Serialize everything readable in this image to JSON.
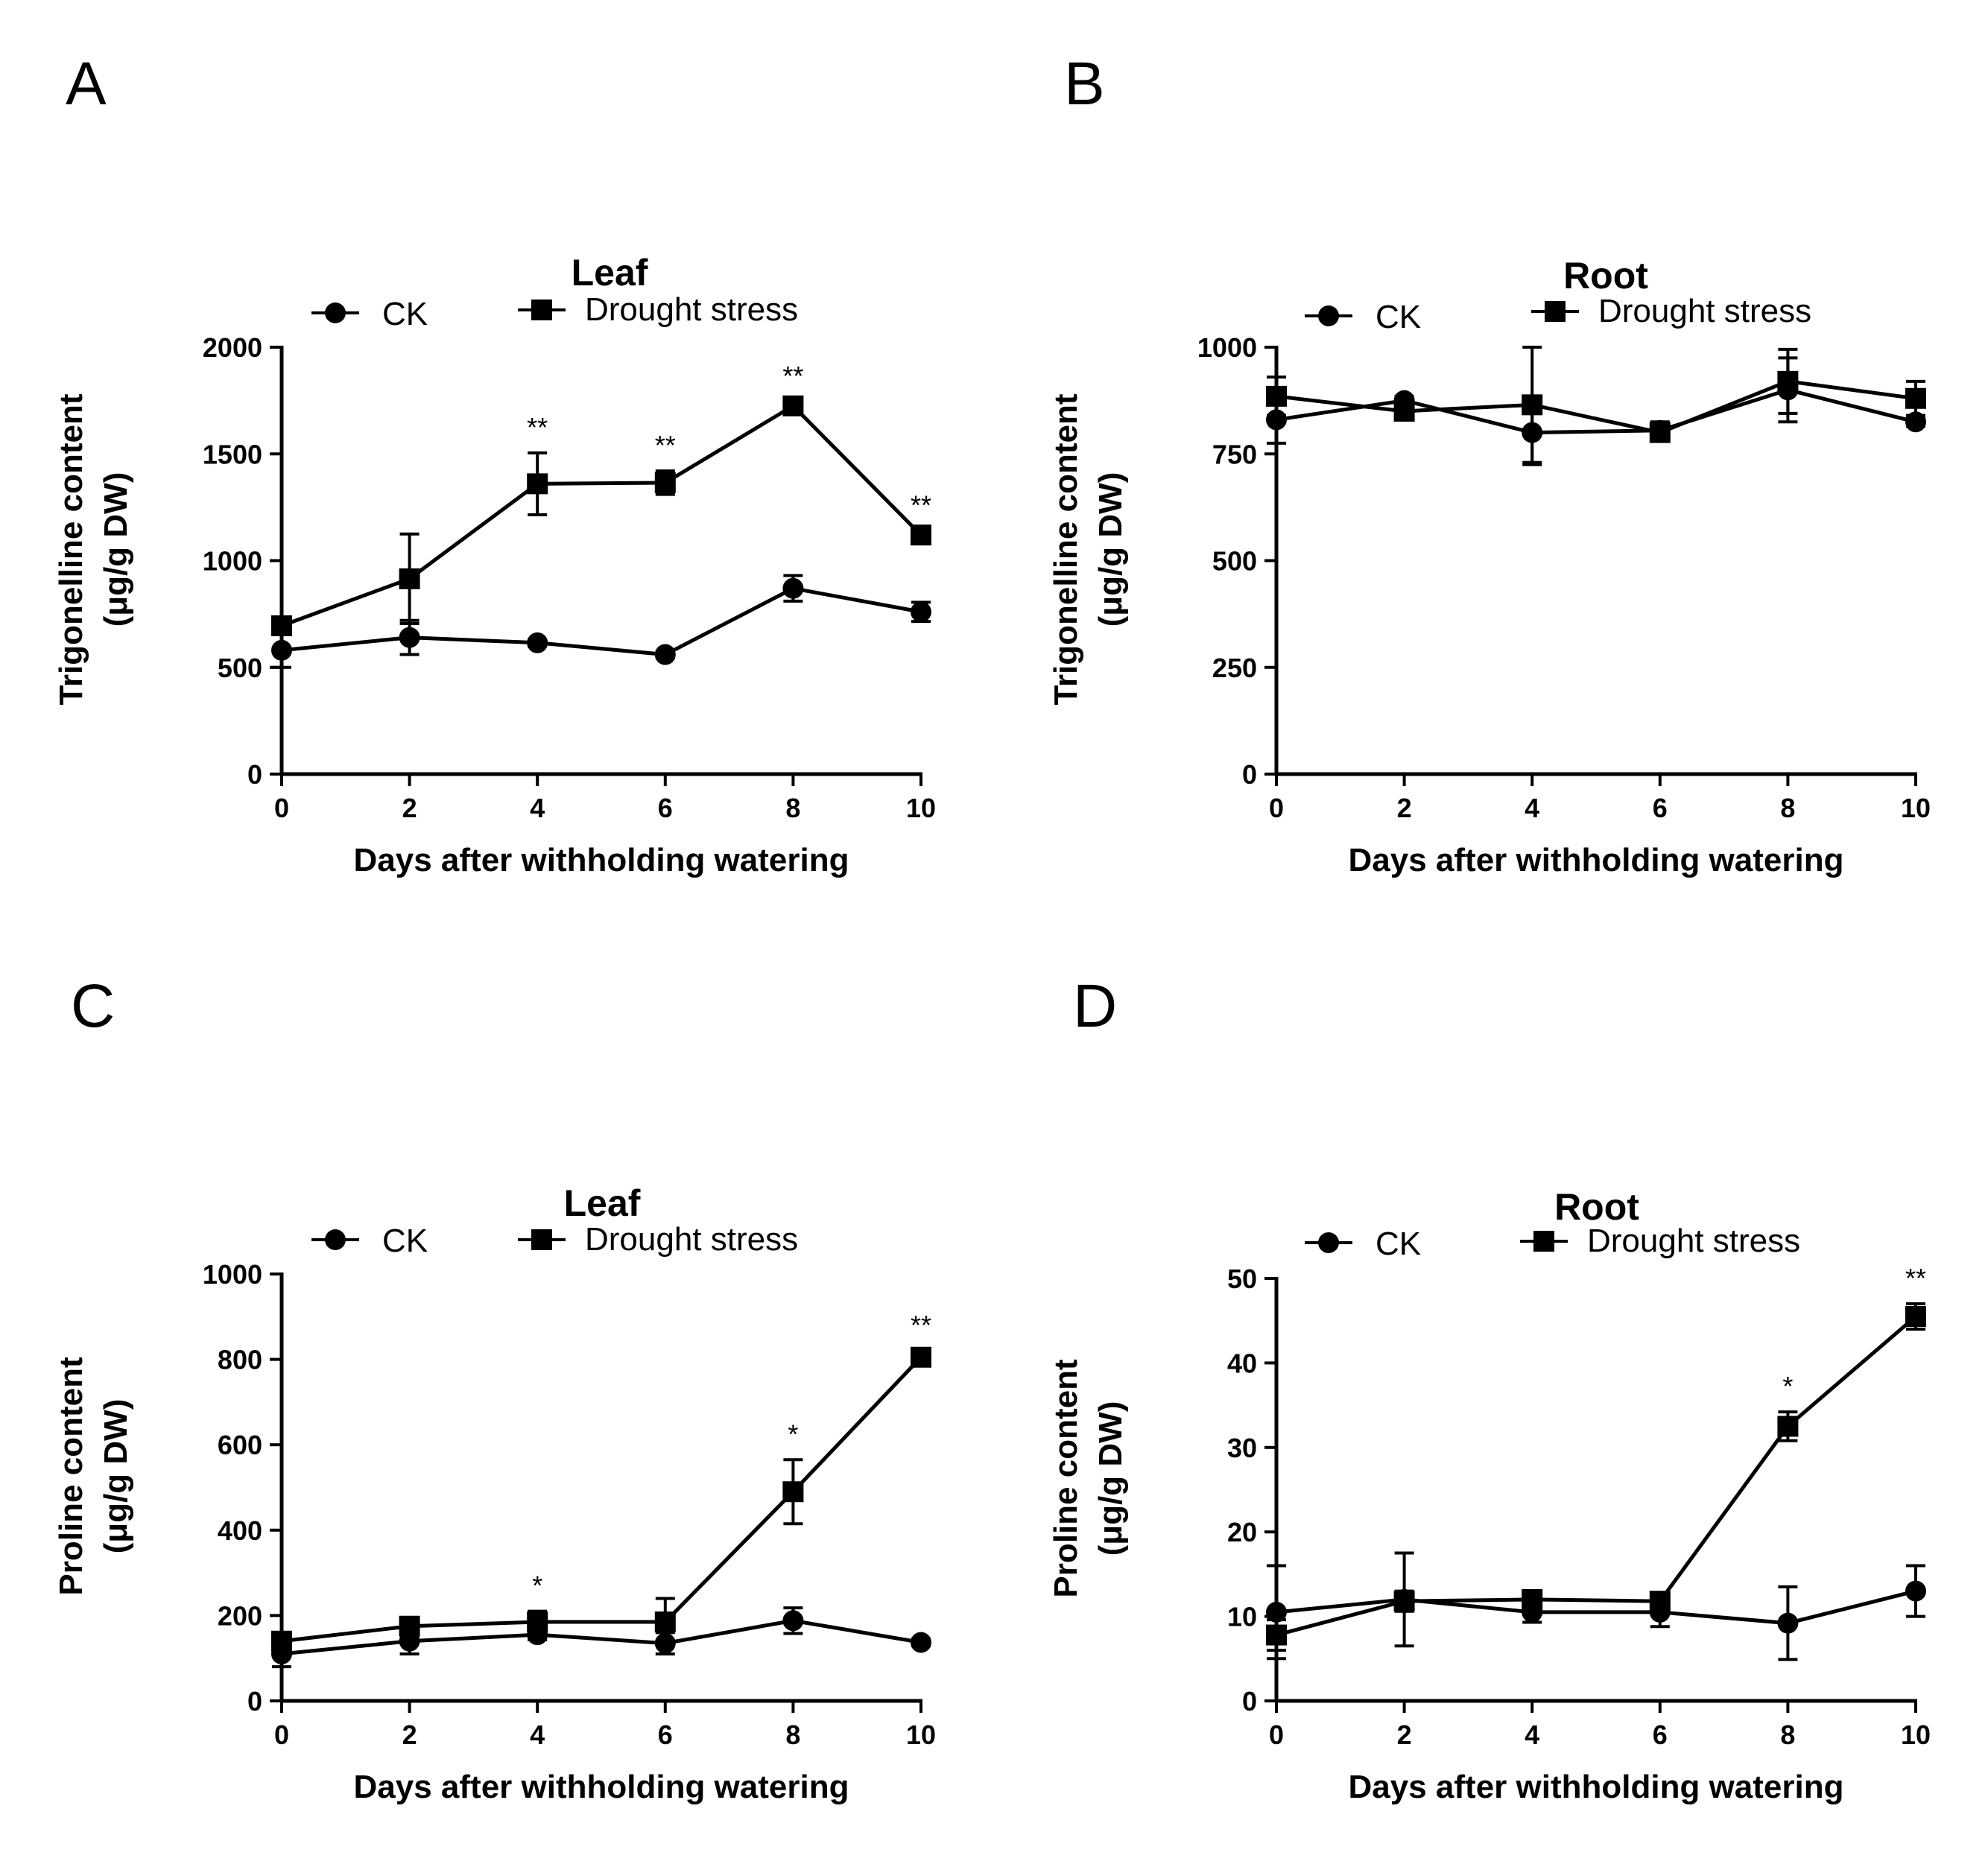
{
  "figure": {
    "series_colors": {
      "CK": "#000000",
      "Drought stress": "#000000"
    },
    "legend": {
      "ck_label": "CK",
      "ck_marker": "circle",
      "drought_label": "Drought stress",
      "drought_marker": "square"
    }
  },
  "chart_data": [
    {
      "panel": "A",
      "type": "line",
      "title": "Leaf",
      "xlabel": "Days after withholding watering",
      "ylabel": "Trigonelline content",
      "ylabel_unit": "(μg/g DW)",
      "x": [
        0,
        2,
        4,
        6,
        8,
        10
      ],
      "xlim": [
        0,
        10
      ],
      "ylim": [
        0,
        2000
      ],
      "xticks": [
        0,
        2,
        4,
        6,
        8,
        10
      ],
      "yticks": [
        0,
        500,
        1000,
        1500,
        2000
      ],
      "series": [
        {
          "name": "CK",
          "marker": "circle",
          "values": [
            580,
            640,
            615,
            560,
            870,
            760
          ],
          "errors": [
            80,
            80,
            15,
            15,
            60,
            45
          ]
        },
        {
          "name": "Drought stress",
          "marker": "square",
          "values": [
            695,
            915,
            1360,
            1365,
            1725,
            1120
          ],
          "errors": [
            20,
            210,
            145,
            55,
            20,
            20
          ]
        }
      ],
      "annotations": [
        {
          "x": 4,
          "text": "**"
        },
        {
          "x": 6,
          "text": "**"
        },
        {
          "x": 8,
          "text": "**"
        },
        {
          "x": 10,
          "text": "**"
        }
      ]
    },
    {
      "panel": "B",
      "type": "line",
      "title": "Root",
      "xlabel": "Days after withholding watering",
      "ylabel": "Trigonelline content",
      "ylabel_unit": "(μg/g DW)",
      "x": [
        0,
        2,
        4,
        6,
        8,
        10
      ],
      "xlim": [
        0,
        10
      ],
      "ylim": [
        0,
        1000
      ],
      "xticks": [
        0,
        2,
        4,
        6,
        8,
        10
      ],
      "yticks": [
        0,
        250,
        500,
        750,
        1000
      ],
      "series": [
        {
          "name": "CK",
          "marker": "circle",
          "values": [
            830,
            875,
            800,
            805,
            900,
            825
          ],
          "errors": [
            55,
            10,
            75,
            20,
            75,
            10
          ]
        },
        {
          "name": "Drought stress",
          "marker": "square",
          "values": [
            885,
            850,
            865,
            800,
            920,
            880
          ],
          "errors": [
            45,
            15,
            135,
            15,
            75,
            40
          ]
        }
      ],
      "annotations": []
    },
    {
      "panel": "C",
      "type": "line",
      "title": "Leaf",
      "xlabel": "Days after withholding watering",
      "ylabel": "Proline content",
      "ylabel_unit": "(μg/g DW)",
      "x": [
        0,
        2,
        4,
        6,
        8,
        10
      ],
      "xlim": [
        0,
        10
      ],
      "ylim": [
        0,
        1000
      ],
      "xticks": [
        0,
        2,
        4,
        6,
        8,
        10
      ],
      "yticks": [
        0,
        200,
        400,
        600,
        800,
        1000
      ],
      "series": [
        {
          "name": "CK",
          "marker": "circle",
          "values": [
            110,
            140,
            155,
            135,
            188,
            137
          ],
          "errors": [
            30,
            30,
            12,
            25,
            30,
            8
          ]
        },
        {
          "name": "Drought stress",
          "marker": "square",
          "values": [
            140,
            175,
            185,
            185,
            490,
            805
          ],
          "errors": [
            20,
            15,
            25,
            55,
            75,
            15
          ]
        }
      ],
      "annotations": [
        {
          "x": 4,
          "text": "*"
        },
        {
          "x": 8,
          "text": "*"
        },
        {
          "x": 10,
          "text": "**"
        }
      ]
    },
    {
      "panel": "D",
      "type": "line",
      "title": "Root",
      "xlabel": "Days after withholding watering",
      "ylabel": "Proline content",
      "ylabel_unit": "(μg/g DW)",
      "x": [
        0,
        2,
        4,
        6,
        8,
        10
      ],
      "xlim": [
        0,
        10
      ],
      "ylim": [
        0,
        50
      ],
      "xticks": [
        0,
        2,
        4,
        6,
        8,
        10
      ],
      "yticks": [
        0,
        10,
        20,
        30,
        40,
        50
      ],
      "series": [
        {
          "name": "CK",
          "marker": "circle",
          "values": [
            10.5,
            12.0,
            10.5,
            10.5,
            9.2,
            13.0
          ],
          "errors": [
            5.5,
            5.5,
            1.2,
            1.7,
            4.3,
            3.0
          ]
        },
        {
          "name": "Drought stress",
          "marker": "square",
          "values": [
            7.8,
            11.8,
            12.0,
            11.8,
            32.5,
            45.5
          ],
          "errors": [
            1.8,
            1.2,
            0.8,
            0.8,
            1.7,
            1.5
          ]
        }
      ],
      "annotations": [
        {
          "x": 8,
          "text": "*"
        },
        {
          "x": 10,
          "text": "**"
        }
      ]
    }
  ]
}
